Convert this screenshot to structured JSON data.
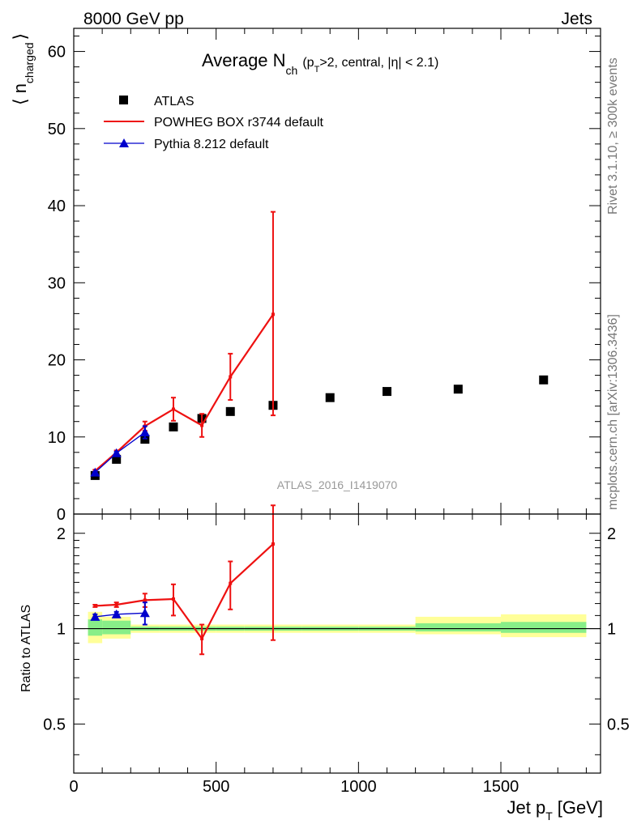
{
  "header": {
    "left": "8000 GeV pp",
    "right": "Jets"
  },
  "side_labels": {
    "rivet": "Rivet 3.1.10, ≥ 300k events",
    "mcplots": "mcplots.cern.ch [arXiv:1306.3436]"
  },
  "watermark": "ATLAS_2016_I1419070",
  "chart_data": [
    {
      "type": "scatter",
      "title_main": "Average N",
      "title_sub": "ch",
      "title_cut_pre": "(p",
      "title_cut_sub": "T",
      "title_cut_post": ">2, central, |η| < 2.1)",
      "ylabel": "⟨ n",
      "ylabel_sub": "charged",
      "ylabel_close": "⟩",
      "xlim": [
        0,
        1850
      ],
      "ylim": [
        0,
        63
      ],
      "y_ticks": [
        0,
        10,
        20,
        30,
        40,
        50,
        60
      ],
      "legend_position": "top-left",
      "series": [
        {
          "name": "ATLAS",
          "style": "marker-square",
          "color": "#000000",
          "x": [
            75,
            150,
            250,
            350,
            450,
            550,
            700,
            900,
            1100,
            1350,
            1650
          ],
          "y": [
            5.0,
            7.1,
            9.7,
            11.3,
            12.4,
            13.3,
            14.1,
            15.1,
            15.9,
            16.2,
            17.4
          ]
        },
        {
          "name": "POWHEG BOX r3744 default",
          "style": "line-errorbar",
          "color": "#ee1111",
          "x": [
            75,
            150,
            250,
            350,
            450,
            550,
            700
          ],
          "y": [
            5.6,
            8.0,
            11.4,
            13.6,
            11.5,
            17.8,
            25.9
          ],
          "err_lo": [
            0.15,
            0.25,
            0.6,
            1.5,
            1.5,
            3.0,
            13.1
          ],
          "err_hi": [
            0.15,
            0.25,
            0.6,
            1.5,
            1.5,
            3.0,
            13.3
          ]
        },
        {
          "name": "Pythia 8.212 default",
          "style": "line-triangle",
          "color": "#0000cc",
          "x": [
            75,
            150,
            250
          ],
          "y": [
            5.4,
            7.9,
            10.6
          ],
          "err_lo": [
            0.1,
            0.2,
            0.8
          ],
          "err_hi": [
            0.1,
            0.2,
            0.8
          ]
        }
      ]
    },
    {
      "type": "scatter",
      "ylabel": "Ratio to ATLAS",
      "xlabel": "Jet p",
      "xlabel_sub": "T",
      "xlabel_unit": "[GeV]",
      "xlim": [
        0,
        1850
      ],
      "ylim": [
        0.35,
        2.3
      ],
      "y_scale": "log",
      "y_ticks": [
        0.5,
        1,
        2
      ],
      "y_tick_labels": [
        "0.5",
        "1",
        "2"
      ],
      "x_ticks": [
        0,
        500,
        1000,
        1500
      ],
      "x_tick_labels": [
        "0",
        "500",
        "1000",
        "1500"
      ],
      "bands": [
        {
          "x0": 50,
          "x1": 100,
          "y_in": [
            0.95,
            1.07
          ],
          "y_out": [
            0.9,
            1.13
          ]
        },
        {
          "x0": 100,
          "x1": 200,
          "y_in": [
            0.96,
            1.06
          ],
          "y_out": [
            0.93,
            1.09
          ]
        },
        {
          "x0": 200,
          "x1": 300,
          "y_in": [
            0.985,
            1.015
          ],
          "y_out": [
            0.97,
            1.03
          ]
        },
        {
          "x0": 300,
          "x1": 400,
          "y_in": [
            0.985,
            1.015
          ],
          "y_out": [
            0.97,
            1.03
          ]
        },
        {
          "x0": 400,
          "x1": 500,
          "y_in": [
            0.985,
            1.015
          ],
          "y_out": [
            0.97,
            1.03
          ]
        },
        {
          "x0": 500,
          "x1": 600,
          "y_in": [
            0.985,
            1.015
          ],
          "y_out": [
            0.97,
            1.03
          ]
        },
        {
          "x0": 600,
          "x1": 800,
          "y_in": [
            0.985,
            1.015
          ],
          "y_out": [
            0.97,
            1.03
          ]
        },
        {
          "x0": 800,
          "x1": 1000,
          "y_in": [
            0.985,
            1.015
          ],
          "y_out": [
            0.97,
            1.03
          ]
        },
        {
          "x0": 1000,
          "x1": 1200,
          "y_in": [
            0.985,
            1.015
          ],
          "y_out": [
            0.97,
            1.03
          ]
        },
        {
          "x0": 1200,
          "x1": 1500,
          "y_in": [
            0.98,
            1.04
          ],
          "y_out": [
            0.96,
            1.09
          ]
        },
        {
          "x0": 1500,
          "x1": 1800,
          "y_in": [
            0.97,
            1.05
          ],
          "y_out": [
            0.94,
            1.11
          ]
        }
      ],
      "series": [
        {
          "name": "POWHEG BOX r3744 default",
          "color": "#ee1111",
          "x": [
            75,
            150,
            250,
            350,
            450,
            550,
            700
          ],
          "y": [
            1.18,
            1.19,
            1.23,
            1.24,
            0.93,
            1.39,
            1.85
          ],
          "err_lo": [
            0.01,
            0.02,
            0.06,
            0.14,
            0.1,
            0.24,
            0.93
          ],
          "err_hi": [
            0.01,
            0.02,
            0.06,
            0.14,
            0.1,
            0.24,
            0.6
          ]
        },
        {
          "name": "Pythia 8.212 default",
          "color": "#0000cc",
          "x": [
            75,
            150,
            250
          ],
          "y": [
            1.09,
            1.11,
            1.12
          ],
          "err_lo": [
            0.02,
            0.02,
            0.09
          ],
          "err_hi": [
            0.02,
            0.02,
            0.09
          ]
        }
      ]
    }
  ]
}
